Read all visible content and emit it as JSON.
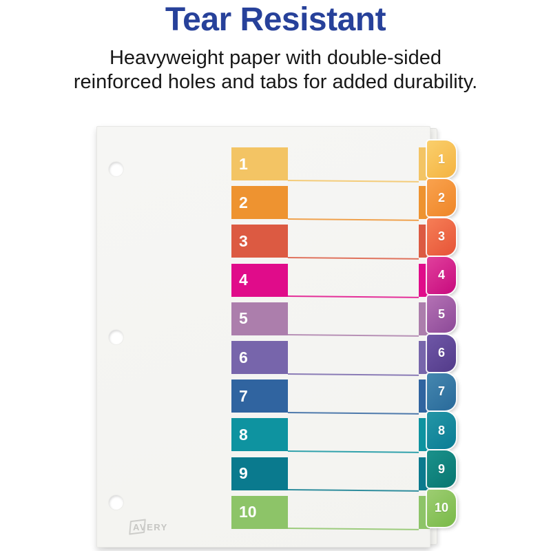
{
  "header": {
    "title": "Tear Resistant",
    "subtitle_line1": "Heavyweight paper with double-sided",
    "subtitle_line2": "reinforced holes and tabs for added durability."
  },
  "colors": {
    "title_blue": "#27419A",
    "paper": "#F5F5F2",
    "background": "#FFFFFF",
    "tab_text": "#FFFFFF"
  },
  "product": {
    "brand": "AVERY",
    "hole_count": 3,
    "tab_count": 10,
    "rows": [
      {
        "label": "1",
        "block_color": "#F3C464",
        "tab_color_start": "#FACF6C",
        "tab_color_end": "#F5B747"
      },
      {
        "label": "2",
        "block_color": "#EE9330",
        "tab_color_start": "#F9A24E",
        "tab_color_end": "#F08A2D"
      },
      {
        "label": "3",
        "block_color": "#DC5A42",
        "tab_color_start": "#F67E56",
        "tab_color_end": "#E85A3C"
      },
      {
        "label": "4",
        "block_color": "#E00C8A",
        "tab_color_start": "#E0409C",
        "tab_color_end": "#CB1282"
      },
      {
        "label": "5",
        "block_color": "#AC7EAC",
        "tab_color_start": "#B472B4",
        "tab_color_end": "#924F9C"
      },
      {
        "label": "6",
        "block_color": "#7765AB",
        "tab_color_start": "#6F57A7",
        "tab_color_end": "#573F8E"
      },
      {
        "label": "7",
        "block_color": "#3064A0",
        "tab_color_start": "#4587AF",
        "tab_color_end": "#2D6E9D"
      },
      {
        "label": "8",
        "block_color": "#0E93A0",
        "tab_color_start": "#2496A6",
        "tab_color_end": "#0E8097"
      },
      {
        "label": "9",
        "block_color": "#0A7A8E",
        "tab_color_start": "#1A918B",
        "tab_color_end": "#0B7A74"
      },
      {
        "label": "10",
        "block_color": "#8DC468",
        "tab_color_start": "#9DCD72",
        "tab_color_end": "#7EBC4E"
      }
    ]
  }
}
